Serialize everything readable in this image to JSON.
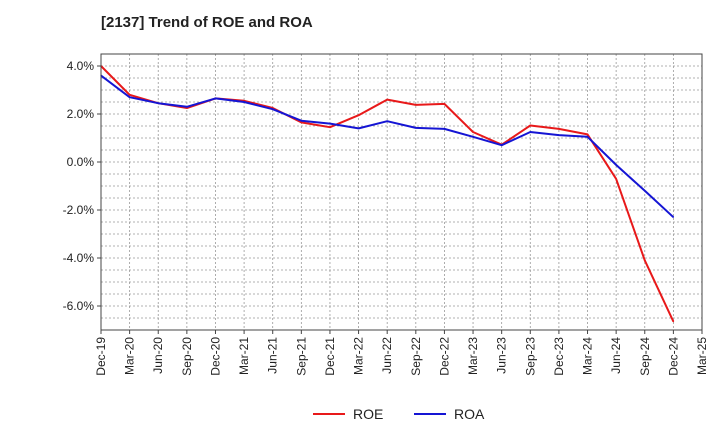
{
  "chart_data": {
    "type": "line",
    "title": "[2137]  Trend of ROE and ROA",
    "xlabel": "",
    "ylabel": "",
    "x": [
      "Dec-19",
      "Mar-20",
      "Jun-20",
      "Sep-20",
      "Dec-20",
      "Mar-21",
      "Jun-21",
      "Sep-21",
      "Dec-21",
      "Mar-22",
      "Jun-22",
      "Sep-22",
      "Dec-22",
      "Mar-23",
      "Jun-23",
      "Sep-23",
      "Dec-23",
      "Mar-24",
      "Jun-24",
      "Sep-24",
      "Dec-24",
      "Mar-25"
    ],
    "ylim": [
      -7.0,
      4.5
    ],
    "yticks": [
      4.0,
      2.0,
      0.0,
      -2.0,
      -4.0,
      -6.0
    ],
    "ytick_labels": [
      "4.0%",
      "2.0%",
      "0.0%",
      "-2.0%",
      "-4.0%",
      "-6.0%"
    ],
    "grid": true,
    "legend_position": "bottom-center",
    "series": [
      {
        "name": "ROE",
        "color": "#e8191a",
        "values": [
          4.0,
          2.8,
          2.45,
          2.25,
          2.65,
          2.55,
          2.25,
          1.65,
          1.45,
          1.95,
          2.6,
          2.38,
          2.42,
          1.25,
          0.72,
          1.52,
          1.38,
          1.15,
          -0.7,
          -4.1,
          -6.65,
          null
        ]
      },
      {
        "name": "ROA",
        "color": "#1515d4",
        "values": [
          3.6,
          2.7,
          2.45,
          2.3,
          2.65,
          2.5,
          2.2,
          1.72,
          1.6,
          1.4,
          1.7,
          1.42,
          1.38,
          1.05,
          0.7,
          1.25,
          1.12,
          1.05,
          -0.12,
          -1.2,
          -2.3,
          null
        ]
      }
    ]
  }
}
